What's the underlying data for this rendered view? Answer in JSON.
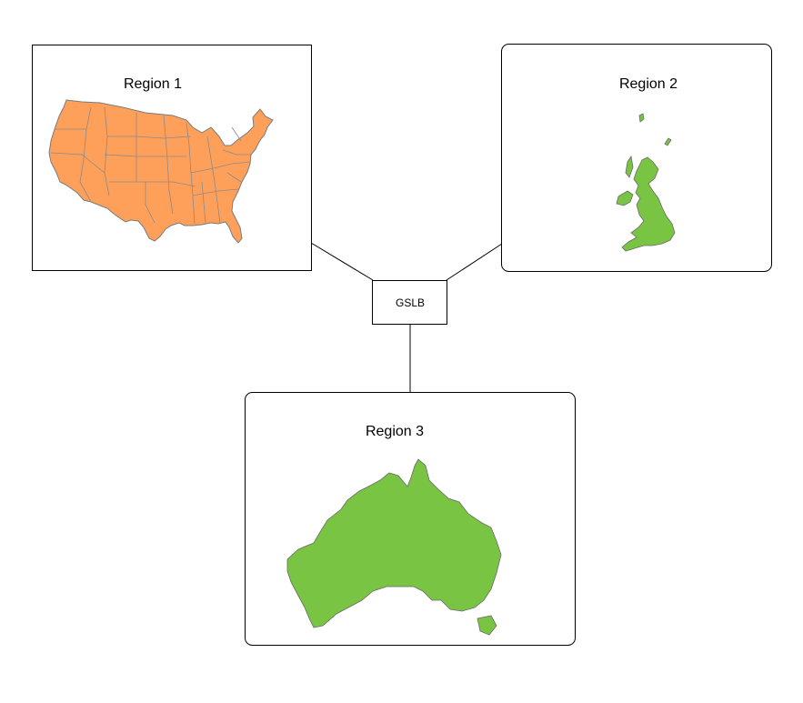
{
  "diagram": {
    "regions": [
      {
        "id": "region-1",
        "label": "Region 1",
        "map_icon": "usa-map-icon",
        "fill": "#ffa05a"
      },
      {
        "id": "region-2",
        "label": "Region 2",
        "map_icon": "uk-map-icon",
        "fill": "#7ac443"
      },
      {
        "id": "region-3",
        "label": "Region 3",
        "map_icon": "australia-map-icon",
        "fill": "#7ac443"
      }
    ],
    "center": {
      "label": "GSLB"
    },
    "connections": [
      {
        "from": "GSLB",
        "to": "Region 1"
      },
      {
        "from": "GSLB",
        "to": "Region 2"
      },
      {
        "from": "GSLB",
        "to": "Region 3"
      }
    ],
    "colors": {
      "map_border": "#7a7a7a",
      "box_border": "#000000"
    }
  }
}
